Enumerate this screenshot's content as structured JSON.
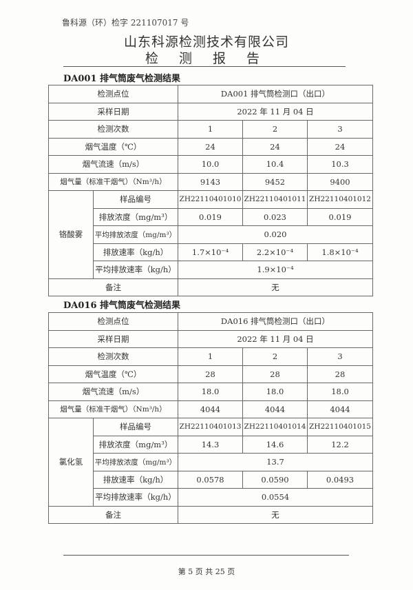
{
  "header": {
    "doc_number": "鲁科源（环）检字 221107017 号",
    "company": "山东科源检测技术有限公司",
    "report_title": "检 测 报 告"
  },
  "sections": [
    {
      "title": "DA001 排气筒废气检测结果",
      "point_label": "检测点位",
      "point": "DA001 排气筒检测口（出口）",
      "date_label": "采样日期",
      "date": "2022 年 11 月 04 日",
      "times_label": "检测次数",
      "times": [
        "1",
        "2",
        "3"
      ],
      "temp_label": "烟气温度（℃）",
      "temp": [
        "24",
        "24",
        "24"
      ],
      "speed_label": "烟气流速（m/s）",
      "speed": [
        "10.0",
        "10.4",
        "10.3"
      ],
      "flow_label": "烟气量（标准干烟气）（Nm³/h）",
      "flow": [
        "9143",
        "9452",
        "9400"
      ],
      "pollutant": "铬酸雾",
      "sample_label": "样品编号",
      "samples": [
        "ZH22110401010",
        "ZH22110401011",
        "ZH22110401012"
      ],
      "conc_label": "排放浓度（mg/m³）",
      "conc": [
        "0.019",
        "0.023",
        "0.019"
      ],
      "avg_conc_label": "平均排放浓度（mg/m³）",
      "avg_conc": "0.020",
      "rate_label": "排放速率（kg/h）",
      "rate": [
        "1.7×10⁻⁴",
        "2.2×10⁻⁴",
        "1.8×10⁻⁴"
      ],
      "avg_rate_label": "平均排放速率（kg/h）",
      "avg_rate": "1.9×10⁻⁴",
      "remark_label": "备注",
      "remark": "无"
    },
    {
      "title": "DA016 排气筒废气检测结果",
      "point_label": "检测点位",
      "point": "DA016 排气筒检测口（出口）",
      "date_label": "采样日期",
      "date": "2022 年 11 月 04 日",
      "times_label": "检测次数",
      "times": [
        "1",
        "2",
        "3"
      ],
      "temp_label": "烟气温度（℃）",
      "temp": [
        "28",
        "28",
        "28"
      ],
      "speed_label": "烟气流速（m/s）",
      "speed": [
        "18.0",
        "18.0",
        "18.0"
      ],
      "flow_label": "烟气量（标准干烟气）（Nm³/h）",
      "flow": [
        "4044",
        "4044",
        "4044"
      ],
      "pollutant": "氯化氢",
      "sample_label": "样品编号",
      "samples": [
        "ZH22110401013",
        "ZH22110401014",
        "ZH22110401015"
      ],
      "conc_label": "排放浓度（mg/m³）",
      "conc": [
        "14.3",
        "14.6",
        "12.2"
      ],
      "avg_conc_label": "平均排放浓度（mg/m³）",
      "avg_conc": "13.7",
      "rate_label": "排放速率（kg/h）",
      "rate": [
        "0.0578",
        "0.0590",
        "0.0493"
      ],
      "avg_rate_label": "平均排放速率（kg/h）",
      "avg_rate": "0.0554",
      "remark_label": "备注",
      "remark": "无"
    }
  ],
  "footer": {
    "page": "第 5 页 共 25 页"
  }
}
